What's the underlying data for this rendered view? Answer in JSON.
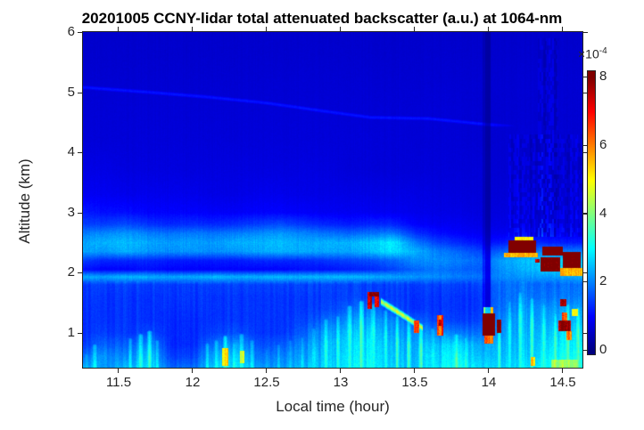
{
  "chart_data": {
    "type": "heatmap",
    "title": "20201005 CCNY-lidar total attenuated backscatter (a.u.) at 1064-nm",
    "xlabel": "Local time (hour)",
    "ylabel": "Altitude (km)",
    "xlim": [
      11.26,
      14.63
    ],
    "ylim": [
      0.42,
      6.0
    ],
    "xticks": [
      11.5,
      12,
      12.5,
      13,
      13.5,
      14,
      14.5
    ],
    "xtick_labels": [
      "11.5",
      "12",
      "12.5",
      "13",
      "13.5",
      "14",
      "14.5"
    ],
    "yticks": [
      1,
      2,
      3,
      4,
      5,
      6
    ],
    "ytick_labels": [
      "1",
      "2",
      "3",
      "4",
      "5",
      "6"
    ],
    "grid_lines": "off",
    "colorbar": {
      "colormap": "jet",
      "min": 0,
      "max": 8,
      "tick_values": [
        0,
        2,
        4,
        6,
        8
      ],
      "tick_labels": [
        "0",
        "2",
        "4",
        "6",
        "8"
      ],
      "multiplier_base": "×10",
      "multiplier_exp": "-4",
      "position": "right"
    },
    "units": "1e-4 a.u.",
    "grid": {
      "times": [
        11.26,
        11.4,
        11.55,
        11.7,
        11.85,
        12.0,
        12.15,
        12.3,
        12.45,
        12.6,
        12.75,
        12.9,
        13.05,
        13.2,
        13.35,
        13.5,
        13.65,
        13.8,
        13.95,
        14.1,
        14.25,
        14.4,
        14.63
      ],
      "alts": [
        0.42,
        0.6,
        0.8,
        1.0,
        1.2,
        1.4,
        1.6,
        1.8,
        1.93,
        2.05,
        2.2,
        2.35,
        2.5,
        2.65,
        2.8,
        3.0,
        3.3,
        3.7,
        4.2,
        4.7,
        5.2,
        5.6,
        6.0
      ],
      "values": [
        [
          2.6,
          2.2,
          2.4,
          2.8,
          1.8,
          1.8,
          2.6,
          2.8,
          2.2,
          2.2,
          2.4,
          2.6,
          2.8,
          3.0,
          2.6,
          2.6,
          2.8,
          3.2,
          2.6,
          2.8,
          2.8,
          3.2,
          3.4
        ],
        [
          2.0,
          2.2,
          2.0,
          2.6,
          1.5,
          1.5,
          2.4,
          2.6,
          1.9,
          2.0,
          2.2,
          2.5,
          2.7,
          2.9,
          2.5,
          2.5,
          2.7,
          3.0,
          2.4,
          2.6,
          2.6,
          3.0,
          3.2
        ],
        [
          1.5,
          1.8,
          1.7,
          2.2,
          1.3,
          1.3,
          1.9,
          2.2,
          1.6,
          1.7,
          2.0,
          2.4,
          2.6,
          2.8,
          2.4,
          2.4,
          2.5,
          2.8,
          2.2,
          2.5,
          2.5,
          2.8,
          3.0
        ],
        [
          1.4,
          1.5,
          1.4,
          1.6,
          1.3,
          1.3,
          1.5,
          1.6,
          1.4,
          1.4,
          1.7,
          2.2,
          2.4,
          2.6,
          2.2,
          2.2,
          2.0,
          2.0,
          1.8,
          2.3,
          2.4,
          2.6,
          2.8
        ],
        [
          1.4,
          1.4,
          1.4,
          1.4,
          1.3,
          1.3,
          1.4,
          1.4,
          1.4,
          1.4,
          1.5,
          1.8,
          2.1,
          2.3,
          2.0,
          1.8,
          1.5,
          1.5,
          1.5,
          2.2,
          2.3,
          2.4,
          2.5
        ],
        [
          1.4,
          1.4,
          1.4,
          1.4,
          1.35,
          1.35,
          1.4,
          1.4,
          1.4,
          1.4,
          1.4,
          1.5,
          1.7,
          1.9,
          1.6,
          1.4,
          1.4,
          1.4,
          1.4,
          2.0,
          2.2,
          2.2,
          2.3
        ],
        [
          1.45,
          1.4,
          1.4,
          1.4,
          1.4,
          1.4,
          1.4,
          1.4,
          1.4,
          1.4,
          1.4,
          1.45,
          1.5,
          1.5,
          1.45,
          1.4,
          1.4,
          1.4,
          1.4,
          1.9,
          2.0,
          1.9,
          2.0
        ],
        [
          1.5,
          1.5,
          1.5,
          1.5,
          1.45,
          1.45,
          1.5,
          1.5,
          1.5,
          1.5,
          1.5,
          1.5,
          1.5,
          1.5,
          1.5,
          1.5,
          1.5,
          1.5,
          1.5,
          1.9,
          1.9,
          1.8,
          1.9
        ],
        [
          2.4,
          2.3,
          2.5,
          2.4,
          2.3,
          2.4,
          2.5,
          2.4,
          2.4,
          2.5,
          2.4,
          2.5,
          2.5,
          2.4,
          2.3,
          2.2,
          2.1,
          2.0,
          1.9,
          2.1,
          2.2,
          2.2,
          2.4
        ],
        [
          1.1,
          1.0,
          1.0,
          1.1,
          1.0,
          1.0,
          1.0,
          1.0,
          1.0,
          1.0,
          1.1,
          1.1,
          1.2,
          1.3,
          1.5,
          1.8,
          1.9,
          1.8,
          1.7,
          2.2,
          2.4,
          2.6,
          2.6
        ],
        [
          1.5,
          1.3,
          1.3,
          1.3,
          1.2,
          1.2,
          1.2,
          1.2,
          1.3,
          1.3,
          1.3,
          1.4,
          1.5,
          1.6,
          1.8,
          2.1,
          2.1,
          2.0,
          1.8,
          2.3,
          2.5,
          2.6,
          2.6
        ],
        [
          2.3,
          2.2,
          2.4,
          2.2,
          2.1,
          2.2,
          2.1,
          2.2,
          2.3,
          2.4,
          2.3,
          2.3,
          2.3,
          2.5,
          2.8,
          2.4,
          2.0,
          1.8,
          1.5,
          1.8,
          2.0,
          2.0,
          2.0
        ],
        [
          2.3,
          2.4,
          2.5,
          2.3,
          2.2,
          2.3,
          2.2,
          2.4,
          2.4,
          2.5,
          2.3,
          2.4,
          2.4,
          2.6,
          2.9,
          2.0,
          1.5,
          1.3,
          1.1,
          1.2,
          1.4,
          1.2,
          1.2
        ],
        [
          2.0,
          2.1,
          2.2,
          2.0,
          1.9,
          2.0,
          1.9,
          2.0,
          2.1,
          2.2,
          2.0,
          1.9,
          1.8,
          1.9,
          2.0,
          1.4,
          1.1,
          1.0,
          0.9,
          0.9,
          1.0,
          0.9,
          0.9
        ],
        [
          1.5,
          1.5,
          1.6,
          1.4,
          1.3,
          1.4,
          1.3,
          1.4,
          1.5,
          1.6,
          1.4,
          1.3,
          1.2,
          1.3,
          1.3,
          1.0,
          0.9,
          0.9,
          0.8,
          0.8,
          0.85,
          0.8,
          0.8
        ],
        [
          1.2,
          1.1,
          1.1,
          1.0,
          1.0,
          1.0,
          0.95,
          0.95,
          1.0,
          1.0,
          0.95,
          0.9,
          0.9,
          0.9,
          0.9,
          0.85,
          0.8,
          0.8,
          0.75,
          0.75,
          0.8,
          0.75,
          0.75
        ],
        [
          0.9,
          0.9,
          0.85,
          0.85,
          0.85,
          0.85,
          0.8,
          0.8,
          0.85,
          0.85,
          0.8,
          0.8,
          0.8,
          0.8,
          0.8,
          0.8,
          0.75,
          0.75,
          0.7,
          0.7,
          0.75,
          0.7,
          0.7
        ],
        [
          0.8,
          0.8,
          0.75,
          0.75,
          0.75,
          0.75,
          0.75,
          0.75,
          0.75,
          0.75,
          0.75,
          0.75,
          0.7,
          0.7,
          0.7,
          0.7,
          0.7,
          0.7,
          0.7,
          0.65,
          0.7,
          0.65,
          0.65
        ],
        [
          0.7,
          0.7,
          0.7,
          0.7,
          0.7,
          0.7,
          0.7,
          0.7,
          0.7,
          0.7,
          0.7,
          0.7,
          0.7,
          0.7,
          0.7,
          0.68,
          0.68,
          0.68,
          0.65,
          0.65,
          0.68,
          0.65,
          0.65
        ],
        [
          0.68,
          0.68,
          0.68,
          0.68,
          0.68,
          0.68,
          0.68,
          0.68,
          0.68,
          0.68,
          0.68,
          0.68,
          0.68,
          0.68,
          0.68,
          0.68,
          0.68,
          0.68,
          0.65,
          0.65,
          0.65,
          0.65,
          0.65
        ],
        [
          0.65,
          0.65,
          0.65,
          0.65,
          0.65,
          0.65,
          0.65,
          0.65,
          0.65,
          0.65,
          0.65,
          0.65,
          0.65,
          0.65,
          0.65,
          0.65,
          0.65,
          0.65,
          0.65,
          0.65,
          0.65,
          0.65,
          0.65
        ],
        [
          0.62,
          0.62,
          0.62,
          0.62,
          0.62,
          0.62,
          0.62,
          0.62,
          0.62,
          0.62,
          0.62,
          0.62,
          0.62,
          0.62,
          0.62,
          0.62,
          0.62,
          0.62,
          0.62,
          0.62,
          0.62,
          0.62,
          0.62
        ],
        [
          0.6,
          0.6,
          0.6,
          0.6,
          0.6,
          0.6,
          0.6,
          0.6,
          0.6,
          0.6,
          0.6,
          0.6,
          0.6,
          0.6,
          0.6,
          0.6,
          0.6,
          0.6,
          0.6,
          0.6,
          0.6,
          0.6,
          0.6
        ]
      ]
    },
    "bands": [
      {
        "name": "faint-elevated-aerosol-layer",
        "points": [
          [
            11.26,
            5.08
          ],
          [
            11.7,
            5.0
          ],
          [
            12.1,
            4.92
          ],
          [
            12.5,
            4.82
          ],
          [
            12.9,
            4.68
          ],
          [
            13.2,
            4.58
          ],
          [
            13.6,
            4.56
          ],
          [
            14.0,
            4.46
          ],
          [
            14.35,
            4.42
          ]
        ],
        "value": 1.15,
        "sigma": 0.05,
        "fade_start": 14.0,
        "fade_end": 14.45
      },
      {
        "name": "descending-residual-trail",
        "points": [
          [
            13.27,
            1.52
          ],
          [
            13.4,
            1.32
          ],
          [
            13.55,
            1.08
          ]
        ],
        "value": 4.6,
        "sigma": 0.07
      }
    ],
    "plumes": [
      [
        11.28,
        0.62,
        3.0
      ],
      [
        11.34,
        0.78,
        3.2
      ],
      [
        11.44,
        0.55,
        2.6
      ],
      [
        11.5,
        0.6,
        2.6
      ],
      [
        11.58,
        0.88,
        3.0
      ],
      [
        11.65,
        0.95,
        3.4
      ],
      [
        11.71,
        1.0,
        3.6
      ],
      [
        11.76,
        0.85,
        3.0
      ],
      [
        11.9,
        0.55,
        2.2
      ],
      [
        12.0,
        0.5,
        2.2
      ],
      [
        12.1,
        0.8,
        3.0
      ],
      [
        12.16,
        0.85,
        3.2
      ],
      [
        12.22,
        0.92,
        3.6
      ],
      [
        12.28,
        0.8,
        3.2
      ],
      [
        12.33,
        0.95,
        3.4
      ],
      [
        12.4,
        0.85,
        3.0
      ],
      [
        12.5,
        0.7,
        2.6
      ],
      [
        12.58,
        0.78,
        2.8
      ],
      [
        12.66,
        0.85,
        2.8
      ],
      [
        12.74,
        0.9,
        2.8
      ],
      [
        12.82,
        1.05,
        3.0
      ],
      [
        12.9,
        1.2,
        3.2
      ],
      [
        12.98,
        1.25,
        3.2
      ],
      [
        13.06,
        1.42,
        3.5
      ],
      [
        13.14,
        1.5,
        3.6
      ],
      [
        13.22,
        1.45,
        3.4
      ],
      [
        13.3,
        1.35,
        3.2
      ],
      [
        13.38,
        1.25,
        3.2
      ],
      [
        13.46,
        1.18,
        3.4
      ],
      [
        13.54,
        1.12,
        3.6
      ],
      [
        13.62,
        1.05,
        3.2
      ],
      [
        13.7,
        0.98,
        3.0
      ],
      [
        13.78,
        0.95,
        3.8
      ],
      [
        13.84,
        0.9,
        3.4
      ],
      [
        13.9,
        0.82,
        3.0
      ],
      [
        14.07,
        1.2,
        3.2
      ],
      [
        14.14,
        1.5,
        3.0
      ],
      [
        14.21,
        1.65,
        3.2
      ],
      [
        14.29,
        1.55,
        3.4
      ],
      [
        14.37,
        1.45,
        3.2
      ],
      [
        14.45,
        1.3,
        3.4
      ],
      [
        14.53,
        1.45,
        3.6
      ],
      [
        14.6,
        1.4,
        3.6
      ]
    ],
    "hotspots": [
      [
        14.13,
        14.32,
        2.33,
        2.53,
        8.6
      ],
      [
        14.17,
        14.3,
        2.53,
        2.6,
        5.0
      ],
      [
        14.1,
        14.33,
        2.25,
        2.33,
        5.6
      ],
      [
        14.36,
        14.5,
        2.28,
        2.44,
        8.5
      ],
      [
        14.35,
        14.48,
        2.02,
        2.26,
        8.3
      ],
      [
        14.5,
        14.62,
        2.08,
        2.35,
        8.5
      ],
      [
        14.48,
        14.63,
        1.95,
        2.08,
        5.6
      ],
      [
        14.31,
        14.34,
        2.16,
        2.22,
        7.5
      ],
      [
        12.2,
        12.24,
        0.45,
        0.75,
        5.2
      ],
      [
        12.32,
        12.35,
        0.5,
        0.7,
        4.8
      ],
      [
        13.18,
        13.21,
        1.4,
        1.68,
        7.0
      ],
      [
        13.23,
        13.26,
        1.42,
        1.66,
        7.2
      ],
      [
        13.19,
        13.26,
        1.6,
        1.68,
        8.3
      ],
      [
        13.49,
        13.53,
        1.0,
        1.2,
        6.8
      ],
      [
        13.65,
        13.69,
        0.95,
        1.3,
        6.5
      ],
      [
        13.66,
        13.68,
        1.12,
        1.22,
        8.2
      ],
      [
        13.955,
        14.04,
        0.95,
        1.32,
        8.6
      ],
      [
        13.96,
        14.03,
        1.32,
        1.42,
        5.5
      ],
      [
        13.97,
        14.03,
        0.82,
        0.95,
        6.0
      ],
      [
        14.055,
        14.085,
        1.0,
        1.22,
        8.3
      ],
      [
        14.47,
        14.55,
        1.02,
        1.2,
        7.8
      ],
      [
        14.48,
        14.52,
        1.44,
        1.56,
        7.5
      ],
      [
        14.49,
        14.53,
        1.2,
        1.34,
        6.2
      ],
      [
        14.52,
        14.56,
        0.88,
        1.02,
        6.0
      ],
      [
        14.56,
        14.6,
        1.28,
        1.4,
        5.0
      ],
      [
        14.28,
        14.31,
        0.45,
        0.6,
        5.5
      ],
      [
        14.42,
        14.6,
        0.42,
        0.55,
        4.2
      ]
    ],
    "dark_stripes": [
      [
        13.975,
        14.01,
        1.32,
        6.0,
        0.45
      ],
      [
        13.955,
        13.975,
        1.32,
        6.0,
        0.72
      ]
    ],
    "artifact_regions": [
      [
        14.13,
        14.63,
        2.6,
        4.3
      ],
      [
        14.33,
        14.47,
        2.6,
        5.9
      ]
    ]
  },
  "style": {
    "axis_color": "#262626",
    "title_color": "#000000",
    "background": "#ffffff"
  }
}
